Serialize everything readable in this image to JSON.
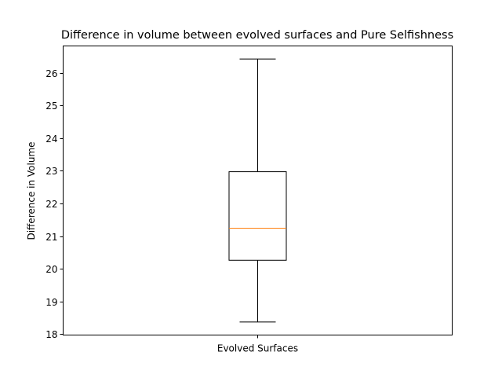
{
  "chart_data": {
    "type": "box",
    "title": "Difference in volume between evolved surfaces and Pure Selfishness",
    "xlabel": "",
    "ylabel": "Difference in Volume",
    "ylim": [
      17.97,
      26.82
    ],
    "yticks": [
      18,
      19,
      20,
      21,
      22,
      23,
      24,
      25,
      26
    ],
    "grid": false,
    "categories": [
      "Evolved Surfaces"
    ],
    "series": [
      {
        "whisker_low": 18.37,
        "q1": 20.26,
        "median": 21.24,
        "q3": 22.97,
        "whisker_high": 26.42
      }
    ],
    "colors": {
      "box": "#000000",
      "median": "#ff7f0e",
      "axes": "#000000"
    }
  }
}
